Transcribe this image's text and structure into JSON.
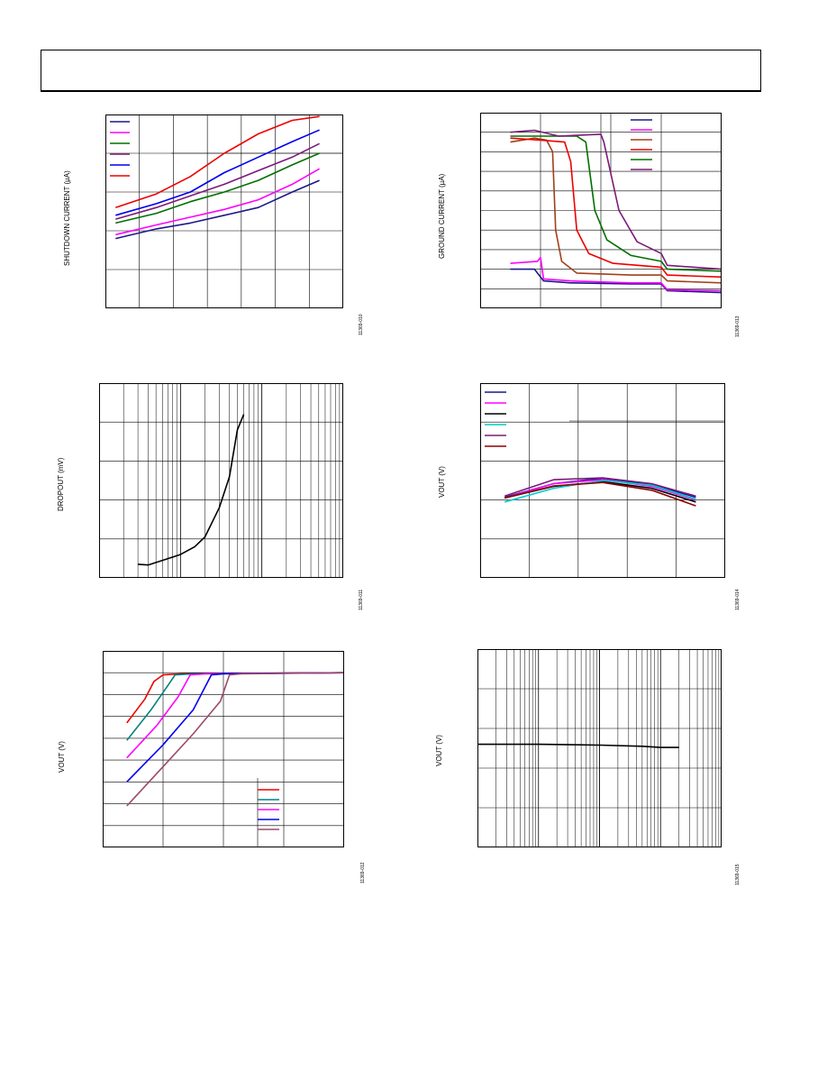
{
  "page": {
    "header": ""
  },
  "chart_data": [
    {
      "type": "line",
      "panel_id": "p1",
      "ylabel": "SHUTDOWN CURRENT (µA)",
      "figure_id": "11369-010",
      "xlim": [
        0,
        7
      ],
      "ylim": [
        0,
        5
      ],
      "grid": true,
      "xlog": false,
      "legend_placement": "top-left",
      "series": [
        {
          "color": "#1a1a8a",
          "points": [
            [
              0.3,
              1.8
            ],
            [
              1.5,
              2.05
            ],
            [
              2.5,
              2.2
            ],
            [
              3.5,
              2.4
            ],
            [
              4.5,
              2.6
            ],
            [
              5.5,
              3.0
            ],
            [
              6.3,
              3.3
            ]
          ]
        },
        {
          "color": "#ff00ff",
          "points": [
            [
              0.3,
              1.9
            ],
            [
              1.5,
              2.15
            ],
            [
              2.5,
              2.35
            ],
            [
              3.5,
              2.55
            ],
            [
              4.5,
              2.8
            ],
            [
              5.5,
              3.2
            ],
            [
              6.3,
              3.6
            ]
          ]
        },
        {
          "color": "#007000",
          "points": [
            [
              0.3,
              2.2
            ],
            [
              1.5,
              2.45
            ],
            [
              2.5,
              2.75
            ],
            [
              3.5,
              3.0
            ],
            [
              4.5,
              3.3
            ],
            [
              5.5,
              3.7
            ],
            [
              6.3,
              4.0
            ]
          ]
        },
        {
          "color": "#7a1a7a",
          "points": [
            [
              0.3,
              2.3
            ],
            [
              1.5,
              2.6
            ],
            [
              2.5,
              2.9
            ],
            [
              3.5,
              3.2
            ],
            [
              4.5,
              3.55
            ],
            [
              5.5,
              3.9
            ],
            [
              6.3,
              4.25
            ]
          ]
        },
        {
          "color": "#0000ee",
          "points": [
            [
              0.3,
              2.4
            ],
            [
              1.5,
              2.7
            ],
            [
              2.5,
              3.0
            ],
            [
              3.5,
              3.5
            ],
            [
              4.5,
              3.9
            ],
            [
              5.5,
              4.3
            ],
            [
              6.3,
              4.6
            ]
          ]
        },
        {
          "color": "#ee0000",
          "points": [
            [
              0.3,
              2.6
            ],
            [
              1.5,
              2.95
            ],
            [
              2.5,
              3.4
            ],
            [
              3.5,
              4.0
            ],
            [
              4.5,
              4.5
            ],
            [
              5.5,
              4.85
            ],
            [
              6.3,
              4.95
            ]
          ]
        }
      ]
    },
    {
      "type": "line",
      "panel_id": "p2",
      "ylabel": "GROUND CURRENT (µA)",
      "figure_id": "11369-013",
      "xlim": [
        0,
        4
      ],
      "ylim": [
        0,
        10
      ],
      "grid": true,
      "xlog": false,
      "legend_placement": "top-right",
      "series": [
        {
          "color": "#1a1a8a",
          "points": [
            [
              0.5,
              2.0
            ],
            [
              0.9,
              2.0
            ],
            [
              1.05,
              1.4
            ],
            [
              1.5,
              1.3
            ],
            [
              2.5,
              1.25
            ],
            [
              3.0,
              1.25
            ],
            [
              3.1,
              0.9
            ],
            [
              4.0,
              0.8
            ]
          ]
        },
        {
          "color": "#ff00ff",
          "points": [
            [
              0.5,
              2.3
            ],
            [
              0.95,
              2.4
            ],
            [
              1.0,
              2.6
            ],
            [
              1.05,
              1.5
            ],
            [
              1.5,
              1.4
            ],
            [
              2.5,
              1.3
            ],
            [
              3.0,
              1.3
            ],
            [
              3.1,
              0.95
            ],
            [
              4.0,
              0.9
            ]
          ]
        },
        {
          "color": "#a0401a",
          "points": [
            [
              0.5,
              8.5
            ],
            [
              0.9,
              8.7
            ],
            [
              1.1,
              8.6
            ],
            [
              1.2,
              8.0
            ],
            [
              1.25,
              4.0
            ],
            [
              1.35,
              2.4
            ],
            [
              1.6,
              1.8
            ],
            [
              2.5,
              1.7
            ],
            [
              3.0,
              1.7
            ],
            [
              3.1,
              1.4
            ],
            [
              4.0,
              1.3
            ]
          ]
        },
        {
          "color": "#ee0000",
          "points": [
            [
              0.5,
              8.7
            ],
            [
              1.0,
              8.6
            ],
            [
              1.4,
              8.5
            ],
            [
              1.5,
              7.5
            ],
            [
              1.6,
              4.0
            ],
            [
              1.8,
              2.8
            ],
            [
              2.2,
              2.3
            ],
            [
              3.0,
              2.1
            ],
            [
              3.1,
              1.7
            ],
            [
              4.0,
              1.6
            ]
          ]
        },
        {
          "color": "#007000",
          "points": [
            [
              0.5,
              8.8
            ],
            [
              1.0,
              8.8
            ],
            [
              1.6,
              8.8
            ],
            [
              1.75,
              8.5
            ],
            [
              1.9,
              5.0
            ],
            [
              2.1,
              3.5
            ],
            [
              2.5,
              2.7
            ],
            [
              3.0,
              2.4
            ],
            [
              3.1,
              2.0
            ],
            [
              4.0,
              1.9
            ]
          ]
        },
        {
          "color": "#7a1a7a",
          "points": [
            [
              0.5,
              9.0
            ],
            [
              0.9,
              9.1
            ],
            [
              1.3,
              8.8
            ],
            [
              2.0,
              8.9
            ],
            [
              2.05,
              8.5
            ],
            [
              2.3,
              5.0
            ],
            [
              2.6,
              3.4
            ],
            [
              3.0,
              2.8
            ],
            [
              3.1,
              2.2
            ],
            [
              4.0,
              2.0
            ]
          ]
        }
      ]
    },
    {
      "type": "line",
      "panel_id": "p3",
      "ylabel": "DROPOUT (mV)",
      "figure_id": "11369-011",
      "xlim": [
        1,
        1000
      ],
      "ylim": [
        0,
        5
      ],
      "grid": true,
      "xlog": true,
      "legend_placement": "none",
      "series": [
        {
          "color": "#000000",
          "points": [
            [
              3,
              0.35
            ],
            [
              4,
              0.33
            ],
            [
              6,
              0.45
            ],
            [
              10,
              0.6
            ],
            [
              15,
              0.8
            ],
            [
              20,
              1.05
            ],
            [
              30,
              1.8
            ],
            [
              40,
              2.6
            ],
            [
              50,
              3.8
            ],
            [
              60,
              4.2
            ]
          ]
        }
      ]
    },
    {
      "type": "line",
      "panel_id": "p4",
      "ylabel": "VOUT (V)",
      "figure_id": "11369-014",
      "xlim": [
        0,
        5
      ],
      "ylim": [
        0,
        5
      ],
      "grid": true,
      "xlog": false,
      "legend_placement": "top-left",
      "series": [
        {
          "color": "#1a1a8a",
          "points": [
            [
              0.5,
              2.07
            ],
            [
              1.5,
              2.42
            ],
            [
              2.5,
              2.56
            ],
            [
              3.5,
              2.4
            ],
            [
              4.4,
              2.07
            ]
          ]
        },
        {
          "color": "#ff00ff",
          "points": [
            [
              0.5,
              2.05
            ],
            [
              1.5,
              2.42
            ],
            [
              2.5,
              2.52
            ],
            [
              3.5,
              2.35
            ],
            [
              4.4,
              2.0
            ]
          ]
        },
        {
          "color": "#000000",
          "points": [
            [
              0.5,
              2.05
            ],
            [
              1.5,
              2.35
            ],
            [
              2.5,
              2.47
            ],
            [
              3.5,
              2.3
            ],
            [
              4.4,
              1.95
            ]
          ]
        },
        {
          "color": "#00cccc",
          "points": [
            [
              0.5,
              1.95
            ],
            [
              1.5,
              2.3
            ],
            [
              2.5,
              2.5
            ],
            [
              3.5,
              2.38
            ],
            [
              4.4,
              2.02
            ]
          ]
        },
        {
          "color": "#7a1a7a",
          "points": [
            [
              0.5,
              2.1
            ],
            [
              1.5,
              2.52
            ],
            [
              2.5,
              2.57
            ],
            [
              3.5,
              2.42
            ],
            [
              4.4,
              2.1
            ]
          ]
        },
        {
          "color": "#8b0000",
          "points": [
            [
              0.5,
              2.05
            ],
            [
              1.5,
              2.36
            ],
            [
              2.5,
              2.45
            ],
            [
              3.5,
              2.25
            ],
            [
              4.4,
              1.85
            ]
          ]
        }
      ]
    },
    {
      "type": "line",
      "panel_id": "p5",
      "ylabel": "VOUT (V)",
      "figure_id": "11369-012",
      "xlim": [
        0,
        4
      ],
      "ylim": [
        0,
        9
      ],
      "grid": true,
      "xlog": false,
      "legend_placement": "bottom-right",
      "series": [
        {
          "color": "#ee0000",
          "points": [
            [
              0.4,
              5.7
            ],
            [
              0.7,
              6.8
            ],
            [
              0.85,
              7.6
            ],
            [
              1.0,
              7.9
            ],
            [
              1.3,
              7.95
            ],
            [
              4.0,
              8.0
            ]
          ]
        },
        {
          "color": "#008080",
          "points": [
            [
              0.4,
              4.9
            ],
            [
              0.8,
              6.3
            ],
            [
              1.05,
              7.3
            ],
            [
              1.2,
              7.9
            ],
            [
              1.5,
              7.95
            ],
            [
              4.0,
              8.0
            ]
          ]
        },
        {
          "color": "#ff00ff",
          "points": [
            [
              0.4,
              4.1
            ],
            [
              0.9,
              5.6
            ],
            [
              1.25,
              6.9
            ],
            [
              1.45,
              7.9
            ],
            [
              1.7,
              7.95
            ],
            [
              4.0,
              8.0
            ]
          ]
        },
        {
          "color": "#0000ee",
          "points": [
            [
              0.4,
              3.0
            ],
            [
              1.0,
              4.7
            ],
            [
              1.5,
              6.3
            ],
            [
              1.8,
              7.9
            ],
            [
              2.0,
              7.95
            ],
            [
              4.0,
              8.0
            ]
          ]
        },
        {
          "color": "#9a4a6a",
          "points": [
            [
              0.4,
              1.9
            ],
            [
              1.0,
              3.7
            ],
            [
              1.5,
              5.2
            ],
            [
              1.95,
              6.7
            ],
            [
              2.1,
              7.9
            ],
            [
              2.3,
              7.95
            ],
            [
              4.0,
              8.0
            ]
          ]
        }
      ]
    },
    {
      "type": "line",
      "panel_id": "p6",
      "ylabel": "VOUT (V)",
      "figure_id": "11369-015",
      "xlim": [
        1,
        10000
      ],
      "ylim": [
        0,
        5
      ],
      "grid": true,
      "xlog": true,
      "legend_placement": "none",
      "series": [
        {
          "color": "#000000",
          "points": [
            [
              1,
              2.6
            ],
            [
              10,
              2.6
            ],
            [
              100,
              2.58
            ],
            [
              500,
              2.55
            ],
            [
              1000,
              2.52
            ],
            [
              2000,
              2.52
            ]
          ]
        }
      ]
    }
  ]
}
